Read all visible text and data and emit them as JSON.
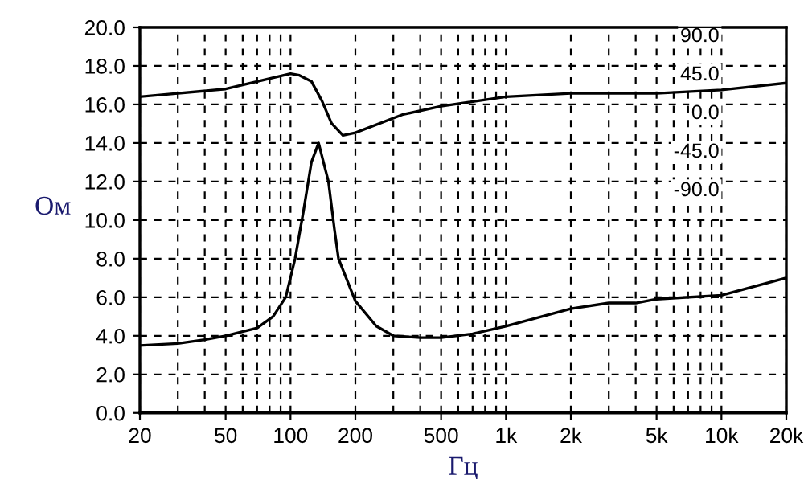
{
  "chart_data": {
    "type": "line",
    "xlabel": "Гц",
    "ylabel": "Ом",
    "log": "x",
    "grid": true,
    "marker": "none",
    "line_style": "solid",
    "xlim": [
      20,
      20000
    ],
    "xticks": [
      20,
      50,
      100,
      200,
      500,
      {
        "value": 1000,
        "label": "1k"
      },
      {
        "value": 2000,
        "label": "2k"
      },
      {
        "value": 5000,
        "label": "5k"
      },
      {
        "value": 10000,
        "label": "10k"
      },
      {
        "value": 20000,
        "label": "20k"
      }
    ],
    "ylim": [
      0,
      20
    ],
    "yticks": [
      {
        "value": 0,
        "label": "0.0"
      },
      {
        "value": 2,
        "label": "2.0"
      },
      {
        "value": 4,
        "label": "4.0"
      },
      {
        "value": 6,
        "label": "6.0"
      },
      {
        "value": 8,
        "label": "8.0"
      },
      {
        "value": 10,
        "label": "10.0"
      },
      {
        "value": 12,
        "label": "12.0"
      },
      {
        "value": 14,
        "label": "14.0"
      },
      {
        "value": 16,
        "label": "16.0"
      },
      {
        "value": 18,
        "label": "18.0"
      },
      {
        "value": 20,
        "label": "20.0"
      }
    ],
    "y2lim": [
      -360,
      90
    ],
    "y2ticks": [
      {
        "value": 90,
        "label": "90.0"
      },
      {
        "value": 45,
        "label": "45.0"
      },
      {
        "value": 0,
        "label": "0.0"
      },
      {
        "value": -45,
        "label": "-45.0"
      },
      {
        "value": -90,
        "label": "-90.0"
      }
    ],
    "series": [
      {
        "color": "#000000",
        "x": [
          20,
          30,
          40,
          50,
          70,
          83,
          95,
          105,
          115,
          125,
          135,
          150,
          160,
          167,
          200,
          250,
          300,
          400,
          500,
          700,
          1000,
          2000,
          3000,
          4000,
          5000,
          10000,
          20000
        ],
        "values": [
          3.5,
          3.6,
          3.8,
          4.0,
          4.4,
          5.0,
          6.0,
          8.0,
          10.5,
          13.0,
          14.0,
          12.0,
          9.5,
          8.0,
          5.8,
          4.5,
          4.0,
          3.9,
          3.9,
          4.1,
          4.5,
          5.4,
          5.7,
          5.7,
          5.9,
          6.1,
          7.0
        ]
      },
      {
        "color": "#000000",
        "axis": "y2",
        "x": [
          20,
          50,
          100,
          110,
          125,
          140,
          155,
          175,
          200,
          330,
          500,
          1000,
          2000,
          5000,
          10000,
          20000
        ],
        "values": [
          9,
          18,
          36,
          34,
          27,
          4,
          -22,
          -36,
          -33,
          -12,
          -2,
          9,
          13,
          13,
          17,
          25
        ]
      }
    ]
  }
}
